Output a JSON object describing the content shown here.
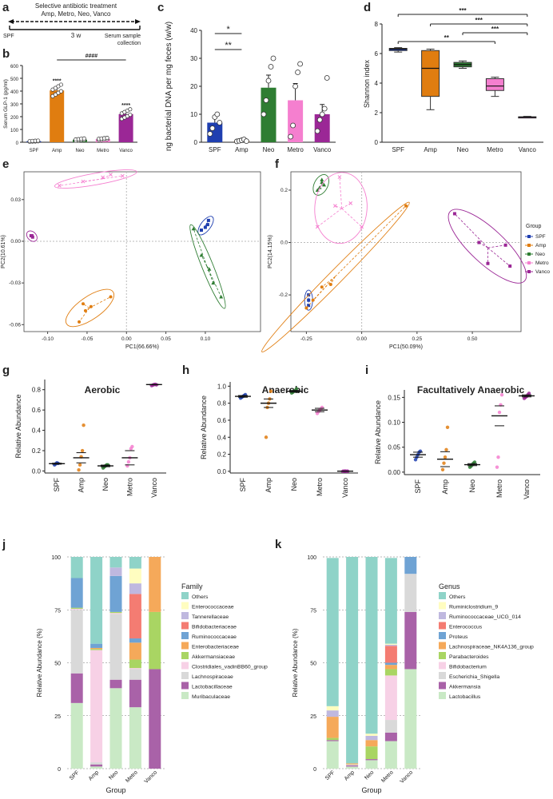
{
  "colors": {
    "SPF": "#1f3fb0",
    "Amp": "#e07d10",
    "Neo": "#2e7d32",
    "Metro": "#f57fcf",
    "Vanco": "#9b2796"
  },
  "panel_labels": [
    "a",
    "b",
    "c",
    "d",
    "e",
    "f",
    "g",
    "h",
    "i",
    "j",
    "k"
  ],
  "timeline": {
    "treatment": "Selective antibiotic treatment",
    "drugs": "Amp, Metro, Neo, Vanco",
    "duration": "3 w",
    "start": "SPF",
    "end_line1": "Serum sample",
    "end_line2": "collection"
  },
  "chart_data": [
    {
      "id": "b",
      "type": "bar",
      "ylabel": "Serum GLP-1 (pg/ml)",
      "ylim": [
        0,
        600
      ],
      "yticks": [
        0,
        100,
        200,
        300,
        400,
        500,
        600
      ],
      "categories": [
        "SPF",
        "Amp",
        "Neo",
        "Metro",
        "Vanco"
      ],
      "values": [
        8,
        405,
        20,
        25,
        220
      ],
      "errors": [
        3,
        30,
        6,
        6,
        25
      ],
      "sig": [
        {
          "label": "****",
          "over": "Amp"
        },
        {
          "label": "****",
          "over": "Vanco"
        },
        {
          "label": "####",
          "from": "Amp",
          "to": "Vanco"
        }
      ]
    },
    {
      "id": "c",
      "type": "bar",
      "ylabel": "ng bacterial DNA per mg feces (w/w)",
      "ylim": [
        0,
        40
      ],
      "yticks": [
        0,
        10,
        20,
        30,
        40
      ],
      "categories": [
        "SPF",
        "Amp",
        "Neo",
        "Metro",
        "Vanco"
      ],
      "values": [
        7,
        0.5,
        19.5,
        15,
        10
      ],
      "errors": [
        2,
        0.3,
        4.5,
        6,
        3.5
      ],
      "points": [
        [
          3,
          5,
          9,
          10,
          7
        ],
        [
          0.3,
          0.5,
          0.7,
          1,
          0.4
        ],
        [
          10,
          15,
          22,
          27,
          30
        ],
        [
          2,
          6,
          20,
          25,
          28
        ],
        [
          4,
          8,
          10,
          12,
          23
        ]
      ],
      "sig": [
        {
          "label": "*",
          "from": "SPF",
          "to": "Amp"
        },
        {
          "label": "**",
          "from": "SPF",
          "to": "Amp"
        }
      ]
    },
    {
      "id": "d",
      "type": "box",
      "ylabel": "Shannon index",
      "ylim": [
        0,
        8
      ],
      "yticks": [
        0,
        2,
        4,
        6,
        8
      ],
      "categories": [
        "SPF",
        "Amp",
        "Neo",
        "Metro",
        "Vanco"
      ],
      "boxes": [
        {
          "min": 6.1,
          "q1": 6.2,
          "median": 6.3,
          "q3": 6.35,
          "max": 6.4
        },
        {
          "min": 2.2,
          "q1": 3.1,
          "median": 5.0,
          "q3": 6.2,
          "max": 6.3
        },
        {
          "min": 5.0,
          "q1": 5.1,
          "median": 5.25,
          "q3": 5.4,
          "max": 5.5
        },
        {
          "min": 3.1,
          "q1": 3.5,
          "median": 3.8,
          "q3": 4.3,
          "max": 4.4
        },
        {
          "min": 1.65,
          "q1": 1.68,
          "median": 1.7,
          "q3": 1.72,
          "max": 1.75
        }
      ],
      "sig": [
        {
          "label": "***",
          "from": "SPF",
          "to": "Vanco"
        },
        {
          "label": "***",
          "from": "Amp",
          "to": "Vanco"
        },
        {
          "label": "***",
          "from": "Neo",
          "to": "Vanco"
        },
        {
          "label": "**",
          "from": "SPF",
          "to": "Metro"
        }
      ]
    },
    {
      "id": "e",
      "type": "scatter",
      "xlabel": "PC1(66.66%)",
      "ylabel": "PC2(10.61%)",
      "xlim": [
        -0.13,
        0.17
      ],
      "ylim": [
        -0.065,
        0.05
      ],
      "xticks": [
        -0.1,
        -0.05,
        0.0,
        0.05,
        0.1
      ],
      "xtick_labels": [
        "-0.10",
        "-0.05",
        "0.00",
        "0.05",
        "0.10"
      ],
      "yticks": [
        -0.06,
        -0.03,
        0.0,
        0.03
      ],
      "ytick_labels": [
        "-0.06",
        "-0.03",
        "0.00",
        "0.03"
      ],
      "groups": [
        {
          "name": "SPF",
          "points": [
            [
              0.095,
              0.008
            ],
            [
              0.1,
              0.01
            ],
            [
              0.103,
              0.012
            ],
            [
              0.104,
              0.015
            ]
          ],
          "centroid": [
            0.1,
            0.011
          ]
        },
        {
          "name": "Amp",
          "points": [
            [
              -0.06,
              -0.058
            ],
            [
              -0.055,
              -0.045
            ],
            [
              -0.052,
              -0.05
            ],
            [
              -0.045,
              -0.047
            ],
            [
              -0.02,
              -0.04
            ]
          ],
          "centroid": [
            -0.047,
            -0.048
          ]
        },
        {
          "name": "Neo",
          "points": [
            [
              0.085,
              0.009
            ],
            [
              0.095,
              -0.01
            ],
            [
              0.105,
              -0.02
            ],
            [
              0.11,
              -0.03
            ],
            [
              0.12,
              -0.04
            ]
          ],
          "centroid": [
            0.102,
            -0.018
          ]
        },
        {
          "name": "Metro",
          "points": [
            [
              -0.085,
              0.04
            ],
            [
              -0.055,
              0.043
            ],
            [
              -0.03,
              0.046
            ],
            [
              -0.02,
              0.048
            ],
            [
              -0.005,
              0.047
            ]
          ],
          "centroid": [
            -0.03,
            0.045
          ]
        },
        {
          "name": "Vanco",
          "points": [
            [
              -0.12,
              0.004
            ],
            [
              -0.119,
              0.003
            ],
            [
              -0.121,
              0.004
            ]
          ],
          "centroid": [
            -0.12,
            0.004
          ]
        }
      ]
    },
    {
      "id": "f",
      "type": "scatter",
      "xlabel": "PC1(50.09%)",
      "ylabel": "PC2(14.15%)",
      "xlim": [
        -0.32,
        0.72
      ],
      "ylim": [
        -0.34,
        0.27
      ],
      "xticks": [
        -0.25,
        0.0,
        0.25,
        0.5
      ],
      "xtick_labels": [
        "-0.25",
        "0.00",
        "0.25",
        "0.50"
      ],
      "yticks": [
        -0.2,
        0.0,
        0.2
      ],
      "ytick_labels": [
        "-0.2",
        "0.0",
        "0.2"
      ],
      "legend_title": "Group",
      "groups": [
        {
          "name": "SPF",
          "points": [
            [
              -0.24,
              -0.24
            ],
            [
              -0.24,
              -0.2
            ],
            [
              -0.24,
              -0.22
            ]
          ],
          "centroid": [
            -0.24,
            -0.22
          ]
        },
        {
          "name": "Amp",
          "points": [
            [
              -0.25,
              -0.25
            ],
            [
              -0.22,
              -0.22
            ],
            [
              -0.18,
              -0.17
            ],
            [
              -0.14,
              -0.16
            ],
            [
              0.2,
              0.14
            ]
          ],
          "centroid": [
            -0.12,
            -0.13
          ]
        },
        {
          "name": "Neo",
          "points": [
            [
              -0.18,
              0.23
            ],
            [
              -0.19,
              0.21
            ],
            [
              -0.17,
              0.22
            ],
            [
              -0.18,
              0.24
            ],
            [
              -0.2,
              0.2
            ]
          ],
          "centroid": [
            -0.18,
            0.22
          ]
        },
        {
          "name": "Metro",
          "points": [
            [
              -0.2,
              0.06
            ],
            [
              -0.05,
              0.15
            ],
            [
              -0.1,
              0.25
            ],
            [
              0.0,
              0.06
            ],
            [
              -0.12,
              0.14
            ]
          ],
          "centroid": [
            -0.09,
            0.13
          ]
        },
        {
          "name": "Vanco",
          "points": [
            [
              0.42,
              0.11
            ],
            [
              0.53,
              0.0
            ],
            [
              0.57,
              -0.08
            ],
            [
              0.65,
              -0.01
            ],
            [
              0.67,
              -0.09
            ]
          ],
          "centroid": [
            0.57,
            -0.02
          ]
        }
      ]
    },
    {
      "id": "g",
      "type": "dotplot",
      "title": "Aerobic",
      "ylabel": "Relative Abundance",
      "ylim": [
        -0.02,
        0.9
      ],
      "yticks": [
        0.0,
        0.2,
        0.4,
        0.6,
        0.8
      ],
      "ytick_labels": [
        "0.0",
        "0.2",
        "0.4",
        "0.6",
        "0.8"
      ],
      "categories": [
        "SPF",
        "Amp",
        "Neo",
        "Metro",
        "Vanco"
      ],
      "points": [
        [
          0.06,
          0.07,
          0.08,
          0.075
        ],
        [
          0.01,
          0.06,
          0.14,
          0.2,
          0.45
        ],
        [
          0.03,
          0.04,
          0.05,
          0.06,
          0.06
        ],
        [
          0.05,
          0.09,
          0.13,
          0.22,
          0.24
        ],
        [
          0.84,
          0.845,
          0.85,
          0.852,
          0.848
        ]
      ],
      "means": [
        0.072,
        0.13,
        0.05,
        0.13,
        0.85
      ],
      "errors": [
        0.005,
        0.05,
        0.008,
        0.07,
        0.002
      ]
    },
    {
      "id": "h",
      "type": "dotplot",
      "title": "Anaerobic",
      "ylabel": "Relative Abundance",
      "ylim": [
        -0.02,
        1.05
      ],
      "yticks": [
        0.0,
        0.2,
        0.4,
        0.6,
        0.8,
        1.0
      ],
      "ytick_labels": [
        "0.0",
        "0.2",
        "0.4",
        "0.6",
        "0.8",
        "1.0"
      ],
      "categories": [
        "SPF",
        "Amp",
        "Neo",
        "Metro",
        "Vanco"
      ],
      "points": [
        [
          0.86,
          0.87,
          0.88,
          0.89,
          0.9
        ],
        [
          0.4,
          0.75,
          0.8,
          0.85,
          0.94
        ],
        [
          0.92,
          0.93,
          0.94,
          0.95,
          0.97
        ],
        [
          0.68,
          0.7,
          0.72,
          0.73,
          0.75
        ],
        [
          0.0,
          0.002,
          0.003,
          0.001,
          0.002
        ]
      ],
      "means": [
        0.88,
        0.8,
        0.94,
        0.72,
        0.002
      ],
      "errors": [
        0.01,
        0.05,
        0.01,
        0.02,
        0.001
      ]
    },
    {
      "id": "i",
      "type": "dotplot",
      "title": "Facultatively Anaerobic",
      "ylabel": "Relative Abundance",
      "ylim": [
        -0.005,
        0.165
      ],
      "yticks": [
        0.0,
        0.05,
        0.1,
        0.15
      ],
      "ytick_labels": [
        "0.00",
        "0.05",
        "0.10",
        "0.15"
      ],
      "categories": [
        "SPF",
        "Amp",
        "Neo",
        "Metro",
        "Vanco"
      ],
      "points": [
        [
          0.025,
          0.03,
          0.035,
          0.04,
          0.042
        ],
        [
          0.005,
          0.018,
          0.03,
          0.045,
          0.09
        ],
        [
          0.01,
          0.012,
          0.015,
          0.018,
          0.02
        ],
        [
          0.01,
          0.03,
          0.12,
          0.135,
          0.155
        ],
        [
          0.148,
          0.15,
          0.152,
          0.155,
          0.158
        ]
      ],
      "means": [
        0.035,
        0.026,
        0.015,
        0.113,
        0.153
      ],
      "errors": [
        0.005,
        0.015,
        0.002,
        0.02,
        0.002
      ]
    },
    {
      "id": "j",
      "type": "stacked_bar",
      "xlabel": "Group",
      "ylabel": "Relative Abundance (%)",
      "legend_title": "Family",
      "categories": [
        "SPF",
        "Amp",
        "Neo",
        "Metro",
        "Vanco"
      ],
      "yticks": [
        0,
        25,
        50,
        75,
        100
      ],
      "series": [
        {
          "name": "Muribaculaceae",
          "color": "#c9e9c5",
          "values": [
            31,
            1,
            38,
            29,
            0
          ]
        },
        {
          "name": "Lactobacillaceae",
          "color": "#a962a8",
          "values": [
            14,
            1,
            4,
            13,
            47
          ]
        },
        {
          "name": "Lachnospiraceae",
          "color": "#d9d9d9",
          "values": [
            30,
            1,
            31,
            5,
            0
          ]
        },
        {
          "name": "Clostridiales_vadinBB60_group",
          "color": "#f7d1e6",
          "values": [
            0.5,
            53,
            0.5,
            0.5,
            0
          ]
        },
        {
          "name": "Akkermansiaceae",
          "color": "#a9d563",
          "values": [
            0.5,
            0.5,
            0.5,
            4,
            27
          ]
        },
        {
          "name": "Enterobacteriaceae",
          "color": "#f5a95a",
          "values": [
            0,
            0.5,
            0,
            8,
            26
          ]
        },
        {
          "name": "Ruminococcaceae",
          "color": "#6fa3d4",
          "values": [
            14,
            2,
            17,
            2,
            0
          ]
        },
        {
          "name": "Bifidobacteriaceae",
          "color": "#f47c72",
          "values": [
            0,
            0,
            0,
            21,
            0
          ]
        },
        {
          "name": "Tannerellaceae",
          "color": "#bfb8df",
          "values": [
            0,
            0,
            4,
            5,
            0
          ]
        },
        {
          "name": "Enterococcaceae",
          "color": "#fffdc0",
          "values": [
            0,
            0,
            0,
            7,
            0
          ]
        },
        {
          "name": "Others",
          "color": "#8fd3c8",
          "values": [
            10,
            41,
            5,
            5.5,
            0
          ]
        }
      ]
    },
    {
      "id": "k",
      "type": "stacked_bar",
      "xlabel": "Group",
      "ylabel": "Relative Abundance (%)",
      "legend_title": "Genus",
      "categories": [
        "SPF",
        "Amp",
        "Neo",
        "Metro",
        "Vanco"
      ],
      "yticks": [
        0,
        25,
        50,
        75,
        100
      ],
      "series": [
        {
          "name": "Lactobacillus",
          "color": "#c9e9c5",
          "values": [
            13,
            1,
            4,
            13,
            47
          ]
        },
        {
          "name": "Akkermansia",
          "color": "#a962a8",
          "values": [
            0.5,
            0.5,
            0.5,
            4,
            27
          ]
        },
        {
          "name": "Escherichia_Shigella",
          "color": "#d9d9d9",
          "values": [
            0,
            0.5,
            0,
            6,
            18
          ]
        },
        {
          "name": "Bifidobacterium",
          "color": "#f7d1e6",
          "values": [
            0,
            0,
            0,
            21,
            0
          ]
        },
        {
          "name": "Parabacteroides",
          "color": "#a9d563",
          "values": [
            1,
            0,
            6,
            3,
            0
          ]
        },
        {
          "name": "Lachnospiraceae_NK4A136_group",
          "color": "#f5a95a",
          "values": [
            10,
            0.5,
            3,
            2,
            0
          ]
        },
        {
          "name": "Proteus",
          "color": "#6fa3d4",
          "values": [
            0,
            0,
            0,
            1,
            8
          ]
        },
        {
          "name": "Enterococcus",
          "color": "#f47c72",
          "values": [
            0,
            0,
            0,
            8,
            0
          ]
        },
        {
          "name": "Ruminococcaceae_UCG_014",
          "color": "#bfb8df",
          "values": [
            3,
            0,
            2,
            0.5,
            0
          ]
        },
        {
          "name": "Ruminiclostridium_9",
          "color": "#fffdc0",
          "values": [
            2,
            0,
            1,
            0.5,
            0
          ]
        },
        {
          "name": "Others",
          "color": "#8fd3c8",
          "values": [
            70,
            97.5,
            83.5,
            40.5,
            0
          ]
        }
      ]
    }
  ]
}
